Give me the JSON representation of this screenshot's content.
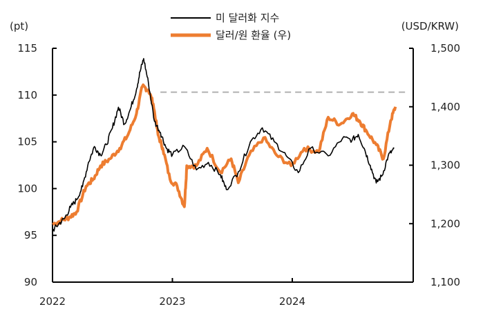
{
  "chart_data": {
    "type": "line",
    "title": "",
    "left_unit": "(pt)",
    "right_unit": "(USD/KRW)",
    "ylim_left": [
      90,
      115
    ],
    "ylim_right": [
      1100,
      1500
    ],
    "left_ticks": [
      {
        "v": 90,
        "label": "90"
      },
      {
        "v": 95,
        "label": "95"
      },
      {
        "v": 100,
        "label": "100"
      },
      {
        "v": 105,
        "label": "105"
      },
      {
        "v": 110,
        "label": "110"
      },
      {
        "v": 115,
        "label": "115"
      }
    ],
    "right_ticks": [
      {
        "v": 1100,
        "label": "1,100"
      },
      {
        "v": 1200,
        "label": "1,200"
      },
      {
        "v": 1300,
        "label": "1,300"
      },
      {
        "v": 1400,
        "label": "1,400"
      },
      {
        "v": 1500,
        "label": "1,500"
      }
    ],
    "xlim": [
      2022,
      2025.05
    ],
    "x_ticks": [
      {
        "v": 2022,
        "label": "2022"
      },
      {
        "v": 2023,
        "label": "2023"
      },
      {
        "v": 2024,
        "label": "2024"
      }
    ],
    "reference_line": {
      "axis": "right",
      "value": 1425,
      "from_x": 2022.9,
      "color": "#b0b0b0",
      "style": "dashed"
    },
    "series": [
      {
        "name": "미 달러화 지수",
        "axis": "left",
        "color": "#000000",
        "x": [
          2022.0,
          2022.05,
          2022.1,
          2022.15,
          2022.2,
          2022.25,
          2022.3,
          2022.35,
          2022.4,
          2022.45,
          2022.5,
          2022.55,
          2022.6,
          2022.65,
          2022.7,
          2022.73,
          2022.76,
          2022.8,
          2022.85,
          2022.9,
          2022.95,
          2023.0,
          2023.1,
          2023.2,
          2023.3,
          2023.4,
          2023.45,
          2023.55,
          2023.65,
          2023.75,
          2023.85,
          2023.95,
          2024.05,
          2024.15,
          2024.3,
          2024.42,
          2024.5,
          2024.55,
          2024.6,
          2024.65,
          2024.7,
          2024.75,
          2024.8,
          2024.85
        ],
        "y": [
          95.5,
          96.2,
          96.8,
          98.0,
          98.8,
          100.2,
          102.8,
          104.5,
          103.6,
          104.7,
          106.5,
          108.7,
          106.9,
          108.5,
          110.6,
          112.5,
          113.9,
          111.3,
          107.2,
          106.0,
          104.3,
          103.6,
          104.5,
          102.0,
          102.8,
          101.5,
          99.9,
          101.8,
          105.0,
          106.5,
          105.0,
          103.5,
          101.7,
          104.3,
          103.5,
          105.4,
          105.2,
          105.8,
          104.3,
          102.5,
          100.6,
          101.4,
          103.5,
          104.3
        ]
      },
      {
        "name": "달러/원 환율 (우)",
        "axis": "right",
        "color": "#ed7d31",
        "x": [
          2022.0,
          2022.07,
          2022.14,
          2022.2,
          2022.28,
          2022.34,
          2022.4,
          2022.48,
          2022.56,
          2022.63,
          2022.7,
          2022.75,
          2022.8,
          2022.84,
          2022.88,
          2022.92,
          2022.98,
          2023.04,
          2023.1,
          2023.12,
          2023.2,
          2023.29,
          2023.4,
          2023.49,
          2023.55,
          2023.64,
          2023.76,
          2023.87,
          2023.99,
          2024.1,
          2024.22,
          2024.3,
          2024.4,
          2024.5,
          2024.56,
          2024.62,
          2024.7,
          2024.76,
          2024.82,
          2024.86
        ],
        "y": [
          1199,
          1205,
          1211,
          1220,
          1264,
          1276,
          1299,
          1311,
          1329,
          1352,
          1388,
          1435,
          1429,
          1405,
          1352,
          1329,
          1276,
          1264,
          1229,
          1299,
          1299,
          1329,
          1288,
          1311,
          1270,
          1317,
          1347,
          1317,
          1299,
          1329,
          1323,
          1382,
          1370,
          1388,
          1376,
          1358,
          1335,
          1311,
          1376,
          1400
        ]
      }
    ]
  }
}
